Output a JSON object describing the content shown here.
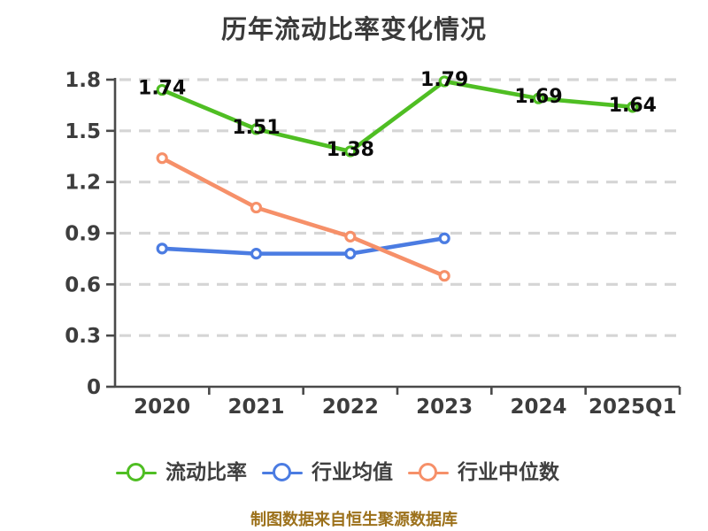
{
  "title": "历年流动比率变化情况",
  "footer": "制图数据来自恒生聚源数据库",
  "colors": {
    "background": "#ffffff",
    "title": "#3a3a3a",
    "axis": "#4a4a4a",
    "tick_label": "#3d3d3d",
    "grid": "#d5d5d5",
    "data_label": "#0a0a0a",
    "legend_label": "#3f3f3f",
    "footer": "#9c711b",
    "series_green": "#4fbe23",
    "series_blue": "#4b7ce2",
    "series_orange": "#f69069"
  },
  "legend": {
    "items": [
      {
        "key": "current-ratio",
        "label": "流动比率",
        "color": "#4fbe23"
      },
      {
        "key": "industry-average",
        "label": "行业均值",
        "color": "#4b7ce2"
      },
      {
        "key": "industry-median",
        "label": "行业中位数",
        "color": "#f69069"
      }
    ]
  },
  "chart_data": {
    "type": "line",
    "title": "历年流动比率变化情况",
    "categories": [
      "2020",
      "2021",
      "2022",
      "2023",
      "2024",
      "2025Q1"
    ],
    "series": [
      {
        "key": "current-ratio",
        "name": "流动比率",
        "color": "#4fbe23",
        "values": [
          1.74,
          1.51,
          1.38,
          1.79,
          1.69,
          1.64
        ],
        "data_labels": [
          "1.74",
          "1.51",
          "1.38",
          "1.79",
          "1.69",
          "1.64"
        ]
      },
      {
        "key": "industry-average",
        "name": "行业均值",
        "color": "#4b7ce2",
        "values": [
          0.81,
          0.78,
          0.78,
          0.87,
          null,
          null
        ],
        "data_labels": null
      },
      {
        "key": "industry-median",
        "name": "行业中位数",
        "color": "#f69069",
        "values": [
          1.34,
          1.05,
          0.88,
          0.65,
          null,
          null
        ],
        "data_labels": null
      }
    ],
    "xlabel": "",
    "ylabel": "",
    "ylim": [
      0,
      1.8
    ],
    "yticks": [
      0,
      0.3,
      0.6,
      0.9,
      1.2,
      1.5,
      1.8
    ],
    "ytick_labels": [
      "0",
      "0.3",
      "0.6",
      "0.9",
      "1.2",
      "1.5",
      "1.8"
    ],
    "grid": true,
    "grid_style": "dashed",
    "marker": "circle-white-fill",
    "legend_position": "bottom"
  }
}
